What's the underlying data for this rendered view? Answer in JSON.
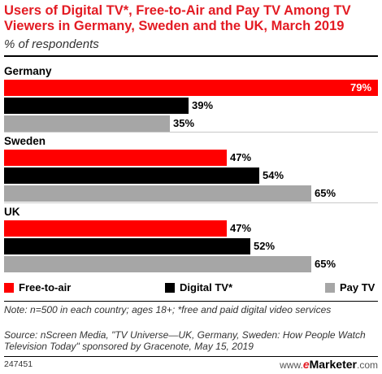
{
  "title": "Users of Digital TV*, Free-to-Air and Pay TV Among TV Viewers in Germany, Sweden and the UK, March 2019",
  "subtitle": "% of respondents",
  "colors": {
    "accent": "#e31b23",
    "free_to_air": "#ff0000",
    "digital_tv": "#000000",
    "pay_tv": "#a6a6a6"
  },
  "chart_data": {
    "type": "bar",
    "orientation": "horizontal",
    "groups": [
      "Germany",
      "Sweden",
      "UK"
    ],
    "series": [
      {
        "name": "Free-to-air",
        "values": [
          79,
          47,
          47
        ]
      },
      {
        "name": "Digital TV*",
        "values": [
          39,
          54,
          52
        ]
      },
      {
        "name": "Pay TV",
        "values": [
          35,
          65,
          65
        ]
      }
    ],
    "value_labels": [
      [
        "79%",
        "39%",
        "35%"
      ],
      [
        "47%",
        "54%",
        "65%"
      ],
      [
        "47%",
        "52%",
        "65%"
      ]
    ],
    "xlim": [
      0,
      79
    ],
    "legend_position": "bottom"
  },
  "note": "Note: n=500 in each country; ages 18+; *free and paid digital video services",
  "source": "Source: nScreen Media, \"TV Universe—UK, Germany, Sweden: How People Watch Television Today\" sponsored by Gracenote, May 15, 2019",
  "chart_id": "247451",
  "brand": {
    "prefix": "www.",
    "e": "e",
    "name": "Marketer",
    "suffix": ".com"
  }
}
